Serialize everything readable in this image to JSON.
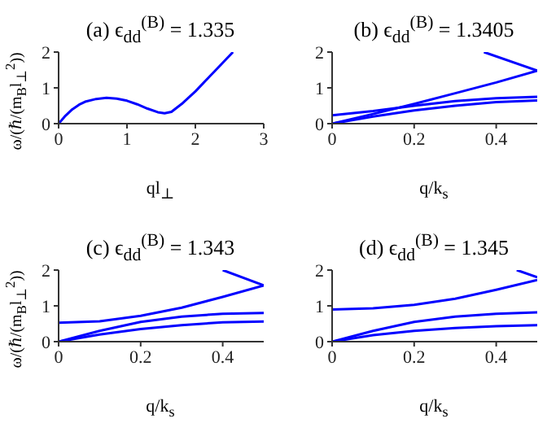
{
  "chart_data": [
    {
      "type": "line",
      "title": "(a) ϵ$_{dd}$$^{(B)}$ = 1.335",
      "xlabel": "ql$_{⊥}$",
      "ylabel": "ω/(ℏ/(m$_{B}$l$_{⊥}$$^{2}$))",
      "xlim": [
        0,
        3
      ],
      "xticks": [
        0,
        1,
        2,
        3
      ],
      "ylim": [
        0,
        2
      ],
      "yticks": [
        0,
        1,
        2
      ],
      "series": [
        {
          "color": "#0000ff",
          "x": [
            0,
            0.1,
            0.2,
            0.3,
            0.4,
            0.55,
            0.7,
            0.85,
            1.0,
            1.15,
            1.3,
            1.45,
            1.55,
            1.65,
            1.8,
            2.0,
            2.2,
            2.4,
            2.55
          ],
          "values": [
            0,
            0.22,
            0.4,
            0.53,
            0.62,
            0.69,
            0.72,
            0.7,
            0.64,
            0.54,
            0.42,
            0.32,
            0.29,
            0.33,
            0.55,
            0.9,
            1.3,
            1.7,
            2.0
          ]
        }
      ]
    },
    {
      "type": "line",
      "title": "(b) ϵ$_{dd}$$^{(B)}$ = 1.3405",
      "xlabel": "q/k$_{s}$",
      "xlim": [
        0,
        0.5
      ],
      "xticks": [
        0,
        0.2,
        0.4
      ],
      "ylim": [
        0,
        2
      ],
      "yticks": [
        0,
        1,
        2
      ],
      "series": [
        {
          "color": "#0000ff",
          "x": [
            0.37,
            0.5
          ],
          "values": [
            2.0,
            1.48
          ]
        },
        {
          "color": "#0000ff",
          "x": [
            0,
            0.1,
            0.2,
            0.3,
            0.4,
            0.5
          ],
          "values": [
            0,
            0.27,
            0.55,
            0.85,
            1.15,
            1.48
          ]
        },
        {
          "color": "#0000ff",
          "x": [
            0,
            0.1,
            0.2,
            0.3,
            0.4,
            0.5
          ],
          "values": [
            0.23,
            0.35,
            0.5,
            0.63,
            0.71,
            0.75
          ]
        },
        {
          "color": "#0000ff",
          "x": [
            0,
            0.1,
            0.2,
            0.3,
            0.4,
            0.5
          ],
          "values": [
            0,
            0.2,
            0.37,
            0.5,
            0.6,
            0.65
          ]
        }
      ]
    },
    {
      "type": "line",
      "title": "(c) ϵ$_{dd}$$^{(B)}$ = 1.343",
      "xlabel": "q/k$_{s}$",
      "ylabel": "ω/(ℏ/(m$_{B}$l$_{⊥}$$^{2}$))",
      "xlim": [
        0,
        0.5
      ],
      "xticks": [
        0,
        0.2,
        0.4
      ],
      "ylim": [
        0,
        2
      ],
      "yticks": [
        0,
        1,
        2
      ],
      "series": [
        {
          "color": "#0000ff",
          "x": [
            0.4,
            0.5
          ],
          "values": [
            2.0,
            1.57
          ]
        },
        {
          "color": "#0000ff",
          "x": [
            0,
            0.1,
            0.2,
            0.3,
            0.4,
            0.5
          ],
          "values": [
            0.53,
            0.57,
            0.72,
            0.95,
            1.25,
            1.57
          ]
        },
        {
          "color": "#0000ff",
          "x": [
            0,
            0.1,
            0.2,
            0.3,
            0.4,
            0.5
          ],
          "values": [
            0,
            0.3,
            0.55,
            0.7,
            0.78,
            0.8
          ]
        },
        {
          "color": "#0000ff",
          "x": [
            0,
            0.1,
            0.2,
            0.3,
            0.4,
            0.5
          ],
          "values": [
            0,
            0.2,
            0.35,
            0.46,
            0.54,
            0.56
          ]
        }
      ]
    },
    {
      "type": "line",
      "title": "(d) ϵ$_{dd}$$^{(B)}$ = 1.345",
      "xlabel": "q/k$_{s}$",
      "xlim": [
        0,
        0.5
      ],
      "xticks": [
        0,
        0.2,
        0.4
      ],
      "ylim": [
        0,
        2
      ],
      "yticks": [
        0,
        1,
        2
      ],
      "series": [
        {
          "color": "#0000ff",
          "x": [
            0.45,
            0.5
          ],
          "values": [
            2.0,
            1.8
          ]
        },
        {
          "color": "#0000ff",
          "x": [
            0,
            0.1,
            0.2,
            0.3,
            0.4,
            0.5
          ],
          "values": [
            0.9,
            0.93,
            1.03,
            1.2,
            1.45,
            1.72
          ]
        },
        {
          "color": "#0000ff",
          "x": [
            0,
            0.1,
            0.2,
            0.3,
            0.4,
            0.5
          ],
          "values": [
            0,
            0.3,
            0.55,
            0.7,
            0.78,
            0.82
          ]
        },
        {
          "color": "#0000ff",
          "x": [
            0,
            0.1,
            0.2,
            0.3,
            0.4,
            0.5
          ],
          "values": [
            0,
            0.18,
            0.3,
            0.38,
            0.43,
            0.46
          ]
        }
      ]
    }
  ]
}
